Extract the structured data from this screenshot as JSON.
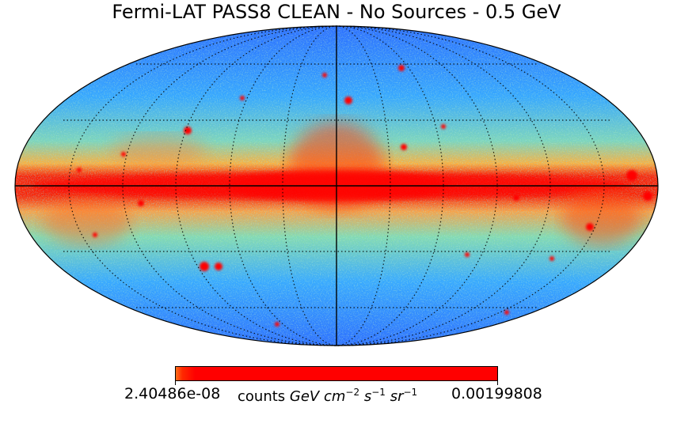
{
  "title": "Fermi-LAT PASS8 CLEAN - No Sources - 0.5 GeV",
  "colorbar": {
    "min_label": "2.40486e-08",
    "max_label": "0.00199808",
    "unit_prefix": "counts",
    "unit_parts": [
      {
        "text": "GeV",
        "style": "italic"
      },
      {
        "text": " ",
        "style": "plain"
      },
      {
        "text": "cm",
        "style": "italic"
      },
      {
        "text": "−2",
        "style": "sup"
      },
      {
        "text": " ",
        "style": "plain"
      },
      {
        "text": "s",
        "style": "italic"
      },
      {
        "text": "−1",
        "style": "sup"
      },
      {
        "text": " ",
        "style": "plain"
      },
      {
        "text": "sr",
        "style": "italic"
      },
      {
        "text": "−1",
        "style": "sup"
      }
    ],
    "colormap": "jet"
  },
  "projection": "mollweide",
  "graticule": "dotted",
  "colors": {
    "low": "#1f5bff",
    "mid": "#8fe0a0",
    "high": "#ff0000",
    "background": "#ffffff"
  }
}
